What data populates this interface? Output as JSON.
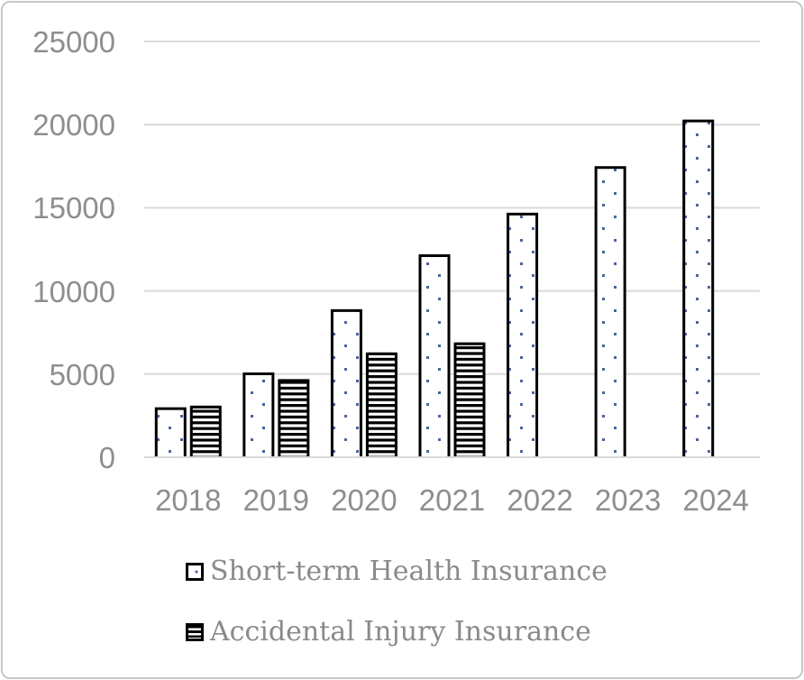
{
  "frame": {
    "background": "#ffffff",
    "border_color": "#c8c8c8"
  },
  "chart_data": {
    "type": "bar",
    "title": "",
    "xlabel": "",
    "ylabel": "",
    "categories": [
      "2018",
      "2019",
      "2020",
      "2021",
      "2022",
      "2023",
      "2024"
    ],
    "series": [
      {
        "name": "Short-term Health Insurance",
        "pattern": "dots",
        "values": [
          3000,
          5100,
          8900,
          12200,
          14700,
          17500,
          20300
        ]
      },
      {
        "name": "Accidental Injury Insurance",
        "pattern": "stripes",
        "values": [
          3100,
          4700,
          6300,
          6900,
          null,
          null,
          null
        ]
      }
    ],
    "ylim": [
      0,
      25000
    ],
    "yticks": [
      0,
      5000,
      10000,
      15000,
      20000,
      25000
    ],
    "grid": "horizontal",
    "legend_position": "bottom-left-stacked",
    "colors": {
      "dot_fill": "#4a659e",
      "bar_border": "#000000",
      "bar_fill_bg": "#ffffff",
      "gridline": "#d9d9d9",
      "axis_text": "#8e8e8e",
      "legend_text": "#8a8a8a"
    }
  }
}
